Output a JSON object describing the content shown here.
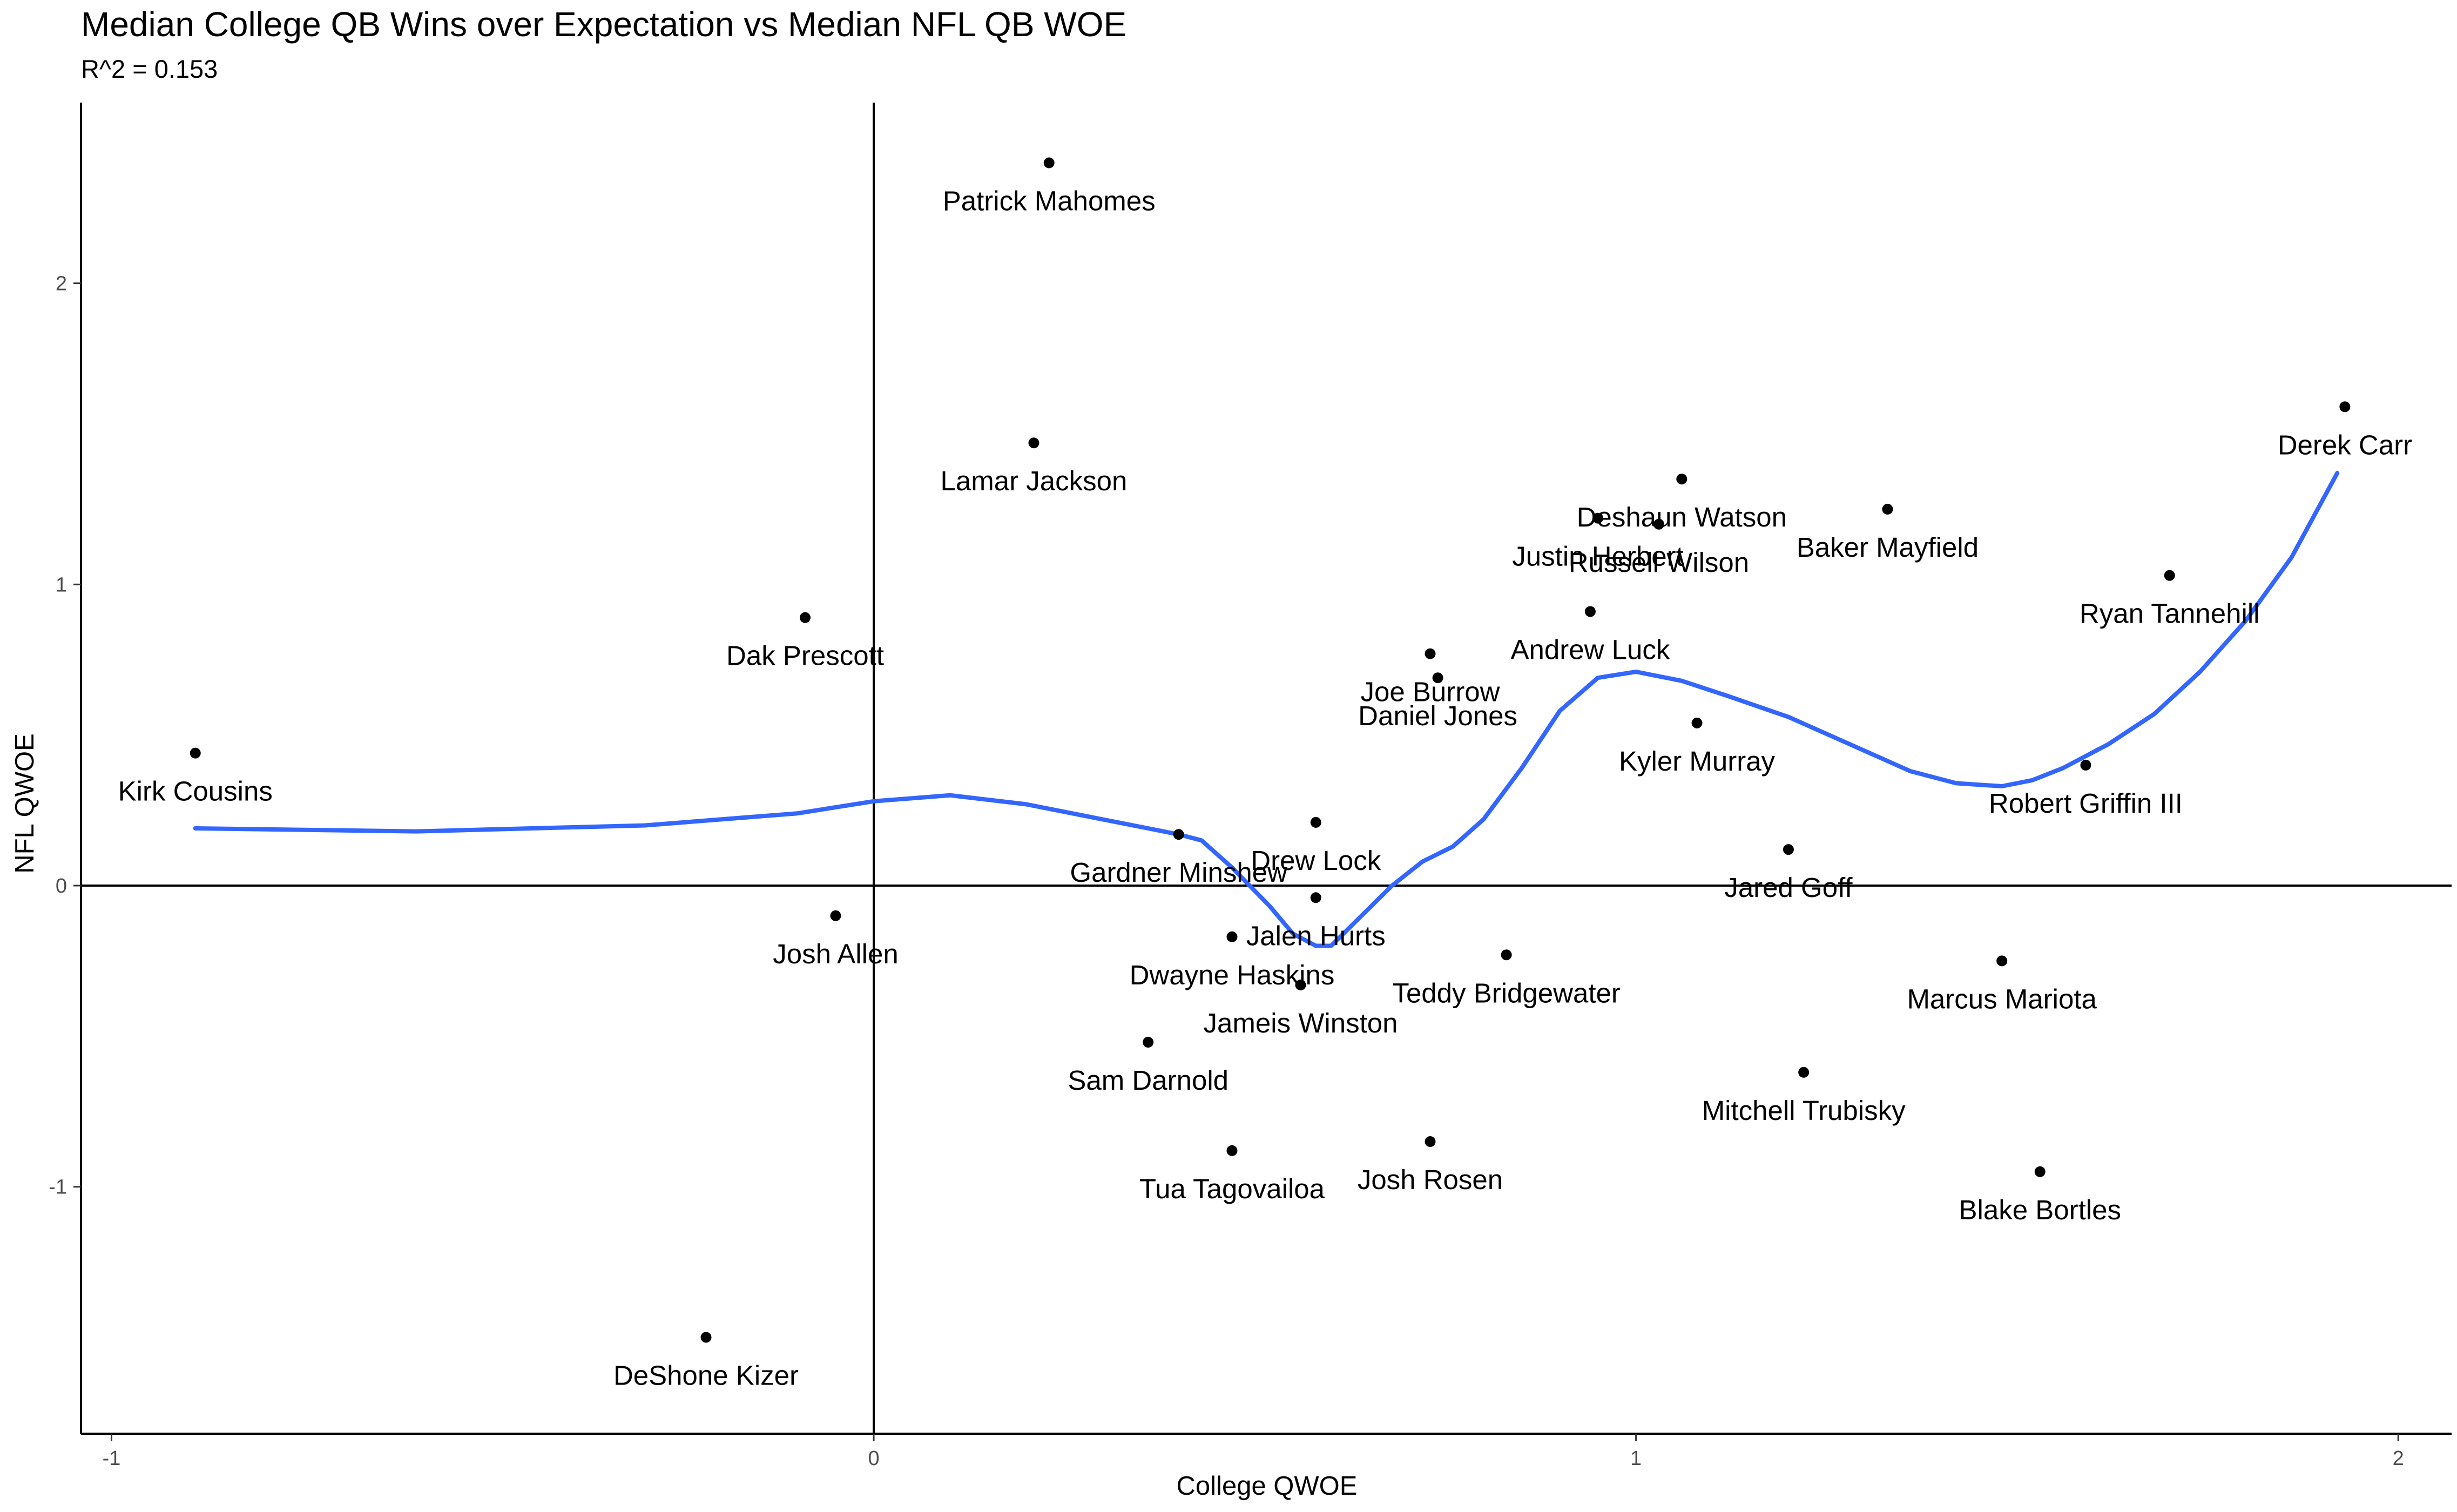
{
  "chart_data": {
    "type": "scatter",
    "title": "Median College QB Wins over Expectation vs Median NFL QB WOE",
    "subtitle": "R^2 = 0.153",
    "xlabel": "College QWOE",
    "ylabel": "NFL QWOE",
    "xlim": [
      -1.04,
      2.07
    ],
    "ylim": [
      -1.82,
      2.6
    ],
    "x_ticks": [
      -1,
      0,
      1,
      2
    ],
    "y_ticks": [
      -1,
      0,
      1,
      2
    ],
    "reference_lines": {
      "x": 0,
      "y": 0
    },
    "grid": false,
    "colors": {
      "points": "#000000",
      "smooth": "#3366FF",
      "axes": "#000000",
      "ticks": "#4d4d4d"
    },
    "points": [
      {
        "name": "Patrick Mahomes",
        "x": 0.23,
        "y": 2.4
      },
      {
        "name": "Derek Carr",
        "x": 1.93,
        "y": 1.59
      },
      {
        "name": "Lamar Jackson",
        "x": 0.21,
        "y": 1.47
      },
      {
        "name": "Deshaun Watson",
        "x": 1.06,
        "y": 1.35
      },
      {
        "name": "Baker Mayfield",
        "x": 1.33,
        "y": 1.25
      },
      {
        "name": "Justin Herbert",
        "x": 0.95,
        "y": 1.22
      },
      {
        "name": "Russell Wilson",
        "x": 1.03,
        "y": 1.2
      },
      {
        "name": "Ryan Tannehill",
        "x": 1.7,
        "y": 1.03
      },
      {
        "name": "Andrew Luck",
        "x": 0.94,
        "y": 0.91
      },
      {
        "name": "Dak Prescott",
        "x": -0.09,
        "y": 0.89
      },
      {
        "name": "Joe Burrow",
        "x": 0.73,
        "y": 0.77
      },
      {
        "name": "Daniel Jones",
        "x": 0.74,
        "y": 0.69
      },
      {
        "name": "Kyler Murray",
        "x": 1.08,
        "y": 0.54
      },
      {
        "name": "Kirk Cousins",
        "x": -0.89,
        "y": 0.44
      },
      {
        "name": "Robert Griffin III",
        "x": 1.59,
        "y": 0.4
      },
      {
        "name": "Drew Lock",
        "x": 0.58,
        "y": 0.21
      },
      {
        "name": "Gardner Minshew",
        "x": 0.4,
        "y": 0.17
      },
      {
        "name": "Jared Goff",
        "x": 1.2,
        "y": 0.12
      },
      {
        "name": "Jalen Hurts",
        "x": 0.58,
        "y": -0.04
      },
      {
        "name": "Josh Allen",
        "x": -0.05,
        "y": -0.1
      },
      {
        "name": "Dwayne Haskins",
        "x": 0.47,
        "y": -0.17
      },
      {
        "name": "Teddy Bridgewater",
        "x": 0.83,
        "y": -0.23
      },
      {
        "name": "Marcus Mariota",
        "x": 1.48,
        "y": -0.25
      },
      {
        "name": "Jameis Winston",
        "x": 0.56,
        "y": -0.33
      },
      {
        "name": "Sam Darnold",
        "x": 0.36,
        "y": -0.52
      },
      {
        "name": "Mitchell Trubisky",
        "x": 1.22,
        "y": -0.62
      },
      {
        "name": "Josh Rosen",
        "x": 0.73,
        "y": -0.85
      },
      {
        "name": "Tua Tagovailoa",
        "x": 0.47,
        "y": -0.88
      },
      {
        "name": "Blake Bortles",
        "x": 1.53,
        "y": -0.95
      },
      {
        "name": "DeShone Kizer",
        "x": -0.22,
        "y": -1.5
      }
    ],
    "smooth_curve": {
      "method": "loess",
      "x": [
        -0.89,
        -0.6,
        -0.3,
        -0.1,
        0.0,
        0.1,
        0.2,
        0.3,
        0.4,
        0.43,
        0.47,
        0.52,
        0.55,
        0.58,
        0.6,
        0.64,
        0.68,
        0.72,
        0.76,
        0.8,
        0.85,
        0.9,
        0.95,
        1.0,
        1.06,
        1.12,
        1.2,
        1.28,
        1.36,
        1.42,
        1.48,
        1.52,
        1.56,
        1.62,
        1.68,
        1.74,
        1.8,
        1.86,
        1.92
      ],
      "y": [
        0.19,
        0.18,
        0.2,
        0.24,
        0.28,
        0.3,
        0.27,
        0.22,
        0.17,
        0.15,
        0.06,
        -0.07,
        -0.16,
        -0.2,
        -0.2,
        -0.1,
        0.0,
        0.08,
        0.13,
        0.22,
        0.39,
        0.58,
        0.69,
        0.71,
        0.68,
        0.63,
        0.56,
        0.47,
        0.38,
        0.34,
        0.33,
        0.35,
        0.39,
        0.47,
        0.57,
        0.71,
        0.88,
        1.09,
        1.37
      ]
    }
  }
}
